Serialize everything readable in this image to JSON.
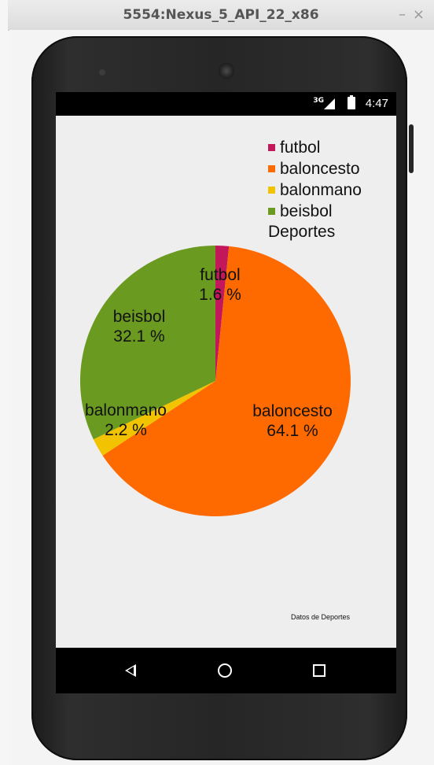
{
  "window": {
    "title": "5554:Nexus_5_API_22_x86",
    "minimize_label": "–",
    "close_label": "×"
  },
  "status_bar": {
    "network": "3G",
    "time": "4:47",
    "icons": [
      "signal-icon",
      "battery-icon"
    ]
  },
  "chart_data": {
    "type": "pie",
    "title": "Deportes",
    "categories": [
      "futbol",
      "baloncesto",
      "balonmano",
      "beisbol"
    ],
    "values": [
      1.6,
      64.1,
      2.2,
      32.1
    ],
    "value_labels": [
      "1.6 %",
      "64.1 %",
      "2.2 %",
      "32.1 %"
    ],
    "colors": [
      "#c2185b",
      "#ff6a00",
      "#f2c300",
      "#6a9a1f"
    ],
    "legend_position": "top-right",
    "description": "Datos de Deportes"
  },
  "nav_bar": {
    "icons": [
      "back-icon",
      "home-icon",
      "recents-icon"
    ]
  }
}
